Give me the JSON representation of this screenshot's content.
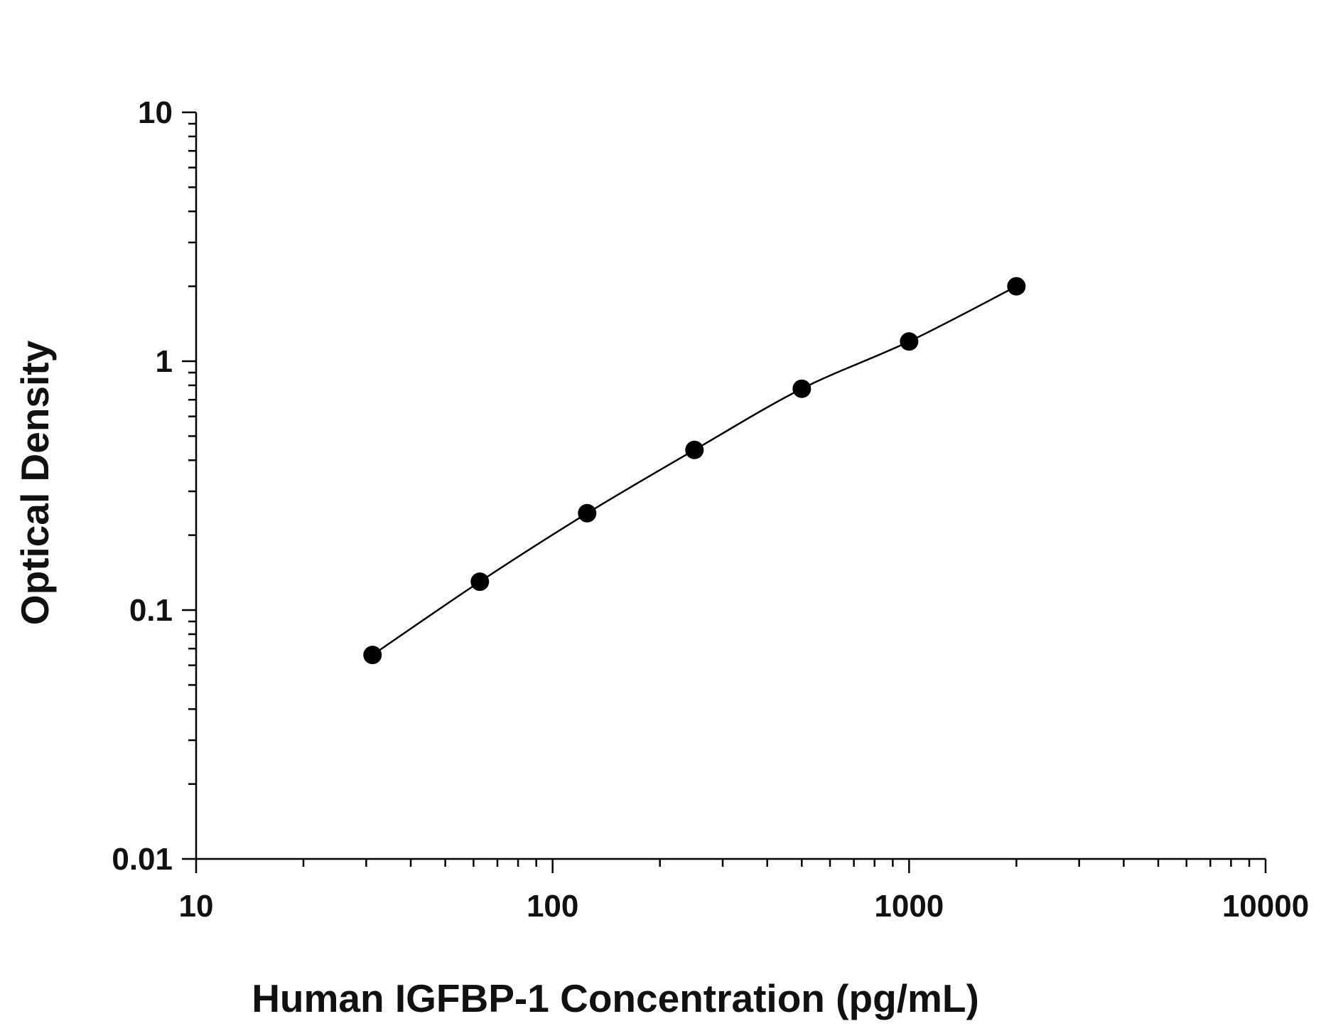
{
  "chart_data": {
    "type": "scatter",
    "xlabel": "Human IGFBP-1 Concentration (pg/mL)",
    "ylabel": "Optical Density",
    "xscale": "log",
    "yscale": "log",
    "xlim": [
      10,
      10000
    ],
    "ylim": [
      0.01,
      10
    ],
    "x_tick_labels": [
      "10",
      "100",
      "1000",
      "10000"
    ],
    "y_tick_labels": [
      "0.01",
      "0.1",
      "1",
      "10"
    ],
    "grid": false,
    "legend": "none",
    "series": [
      {
        "points": [
          {
            "x": 31.25,
            "y": 0.066
          },
          {
            "x": 62.5,
            "y": 0.13
          },
          {
            "x": 125,
            "y": 0.245
          },
          {
            "x": 250,
            "y": 0.44
          },
          {
            "x": 500,
            "y": 0.775
          },
          {
            "x": 1000,
            "y": 1.2
          },
          {
            "x": 2000,
            "y": 2.0
          }
        ],
        "fit_line": true,
        "color": "#000000"
      }
    ]
  }
}
